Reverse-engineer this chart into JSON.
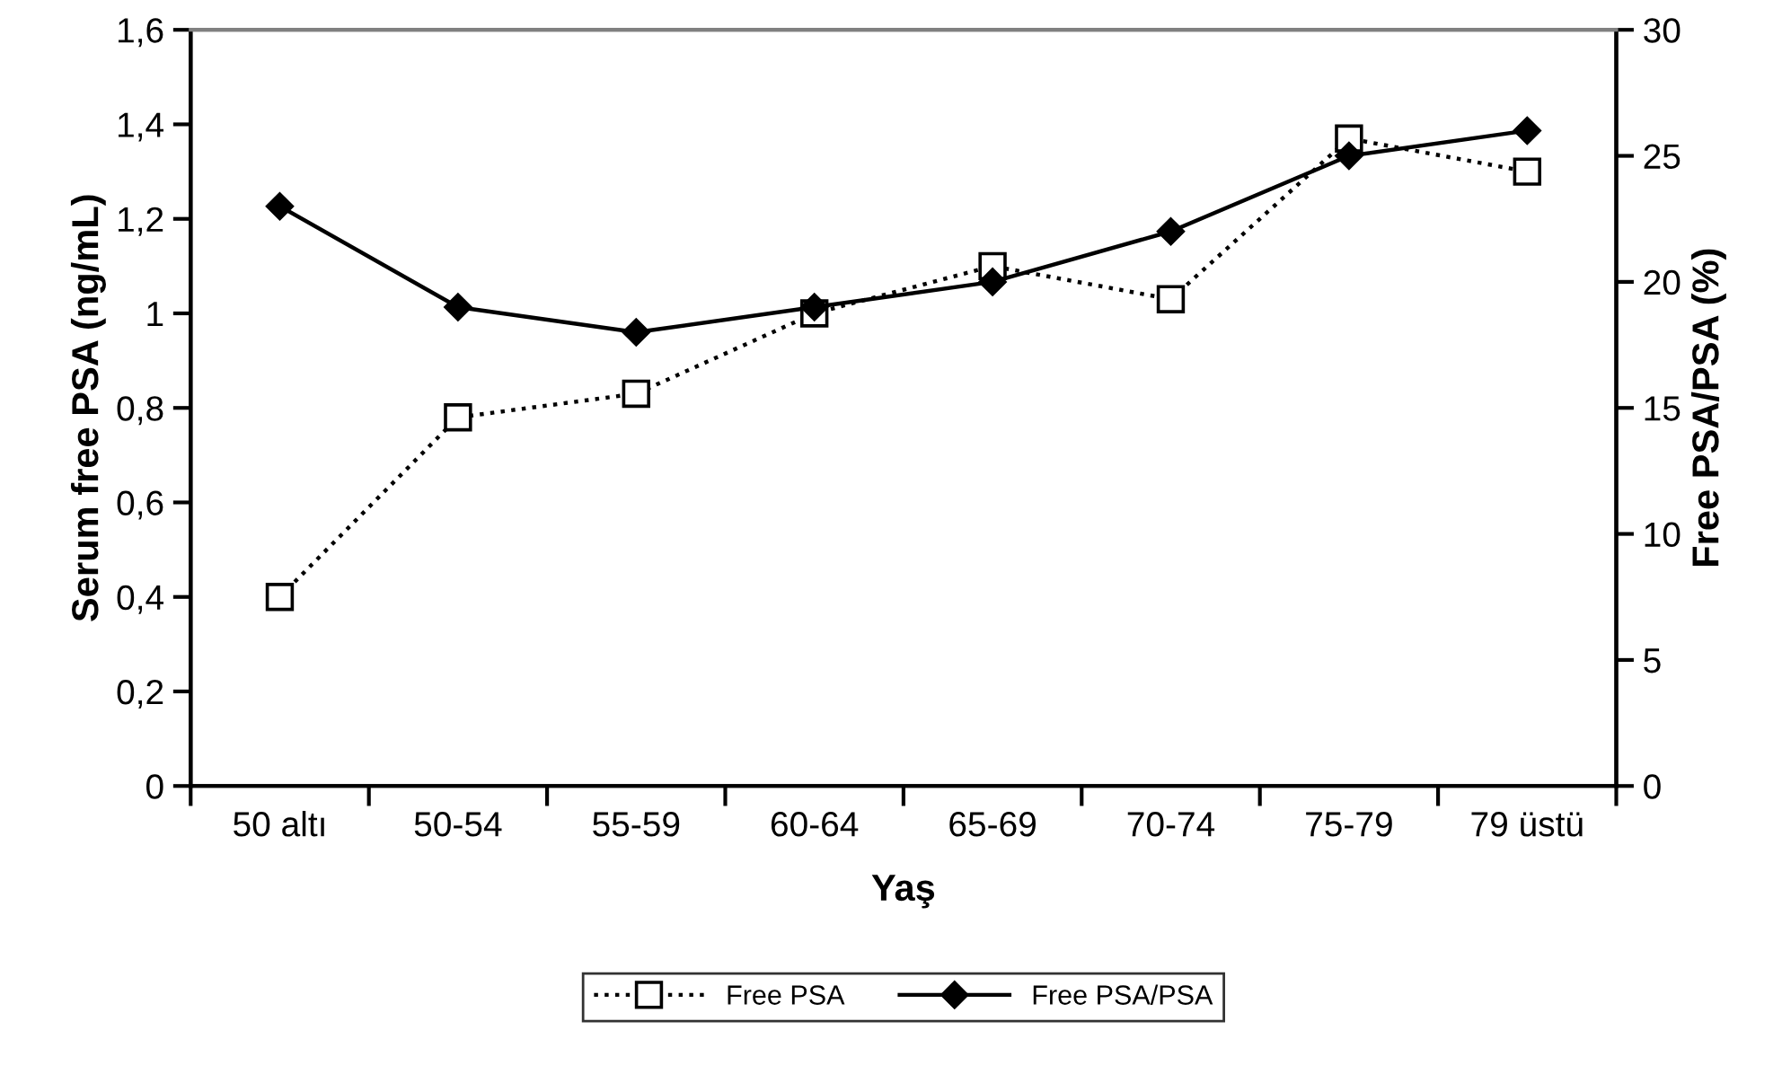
{
  "chart_data": {
    "type": "line",
    "xlabel": "Yaş",
    "ylabel": "Serum free PSA (ng/mL)",
    "y2label": "Free PSA/PSA (%)",
    "categories": [
      "50 altı",
      "50-54",
      "55-59",
      "60-64",
      "65-69",
      "70-74",
      "75-79",
      "79 üstü"
    ],
    "series": [
      {
        "name": "Free PSA",
        "color": "#000000",
        "marker": "square",
        "line_style": "dotted",
        "values": [
          0.4,
          0.78,
          0.83,
          1.0,
          1.1,
          1.03,
          1.37,
          1.3
        ]
      },
      {
        "name": "Free PSA/PSA",
        "color": "#000000",
        "marker": "diamond",
        "line_style": "solid",
        "axis": "y2",
        "values": [
          23,
          19,
          18,
          19,
          20,
          22,
          25,
          26
        ]
      }
    ],
    "ylim": [
      0,
      1.6
    ],
    "yticks": [
      {
        "value": 0,
        "label": "0"
      },
      {
        "value": 0.2,
        "label": "0,2"
      },
      {
        "value": 0.4,
        "label": "0,4"
      },
      {
        "value": 0.6,
        "label": "0,6"
      },
      {
        "value": 0.8,
        "label": "0,8"
      },
      {
        "value": 1,
        "label": "1"
      },
      {
        "value": 1.2,
        "label": "1,2"
      },
      {
        "value": 1.4,
        "label": "1,4"
      },
      {
        "value": 1.6,
        "label": "1,6"
      }
    ],
    "y2lim": [
      0,
      30
    ],
    "y2ticks": [
      0,
      5,
      10,
      15,
      20,
      25,
      30
    ],
    "legend": "bottom",
    "grid": false
  }
}
